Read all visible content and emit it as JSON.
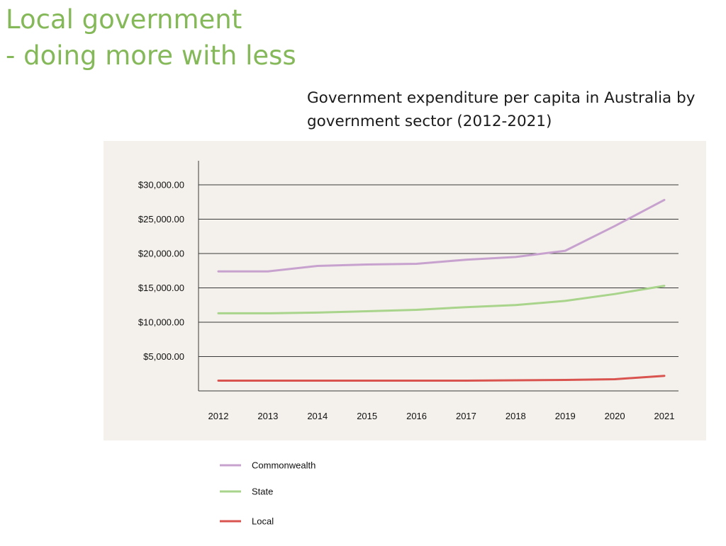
{
  "slide": {
    "title_line1": "Local government",
    "title_line2": "- doing more with less"
  },
  "chart_data": {
    "type": "line",
    "title_line1": "Government expenditure per capita in Australia by",
    "title_line2": "government sector (2012-2021)",
    "xlabel": "",
    "ylabel": "",
    "x": [
      "2012",
      "2013",
      "2014",
      "2015",
      "2016",
      "2017",
      "2018",
      "2019",
      "2020",
      "2021"
    ],
    "y_ticks": [
      {
        "value": 5000,
        "label": "$5,000.00"
      },
      {
        "value": 10000,
        "label": "$10,000.00"
      },
      {
        "value": 15000,
        "label": "$15,000.00"
      },
      {
        "value": 20000,
        "label": "$20,000.00"
      },
      {
        "value": 25000,
        "label": "$25,000.00"
      },
      {
        "value": 30000,
        "label": "$30,000.00"
      }
    ],
    "ylim": [
      0,
      33500
    ],
    "grid": true,
    "legend_position": "bottom",
    "plot_background": "#f4f1ec",
    "series": [
      {
        "name": "Commonwealth",
        "color": "#c8a2cf",
        "values": [
          17400,
          17400,
          18200,
          18400,
          18500,
          19100,
          19500,
          20400,
          24000,
          27800
        ]
      },
      {
        "name": "State",
        "color": "#a9d48b",
        "values": [
          11300,
          11300,
          11400,
          11600,
          11800,
          12200,
          12500,
          13100,
          14100,
          15300
        ]
      },
      {
        "name": "Local",
        "color": "#d9534f",
        "values": [
          1500,
          1500,
          1500,
          1500,
          1500,
          1500,
          1550,
          1600,
          1700,
          2200
        ]
      }
    ]
  }
}
